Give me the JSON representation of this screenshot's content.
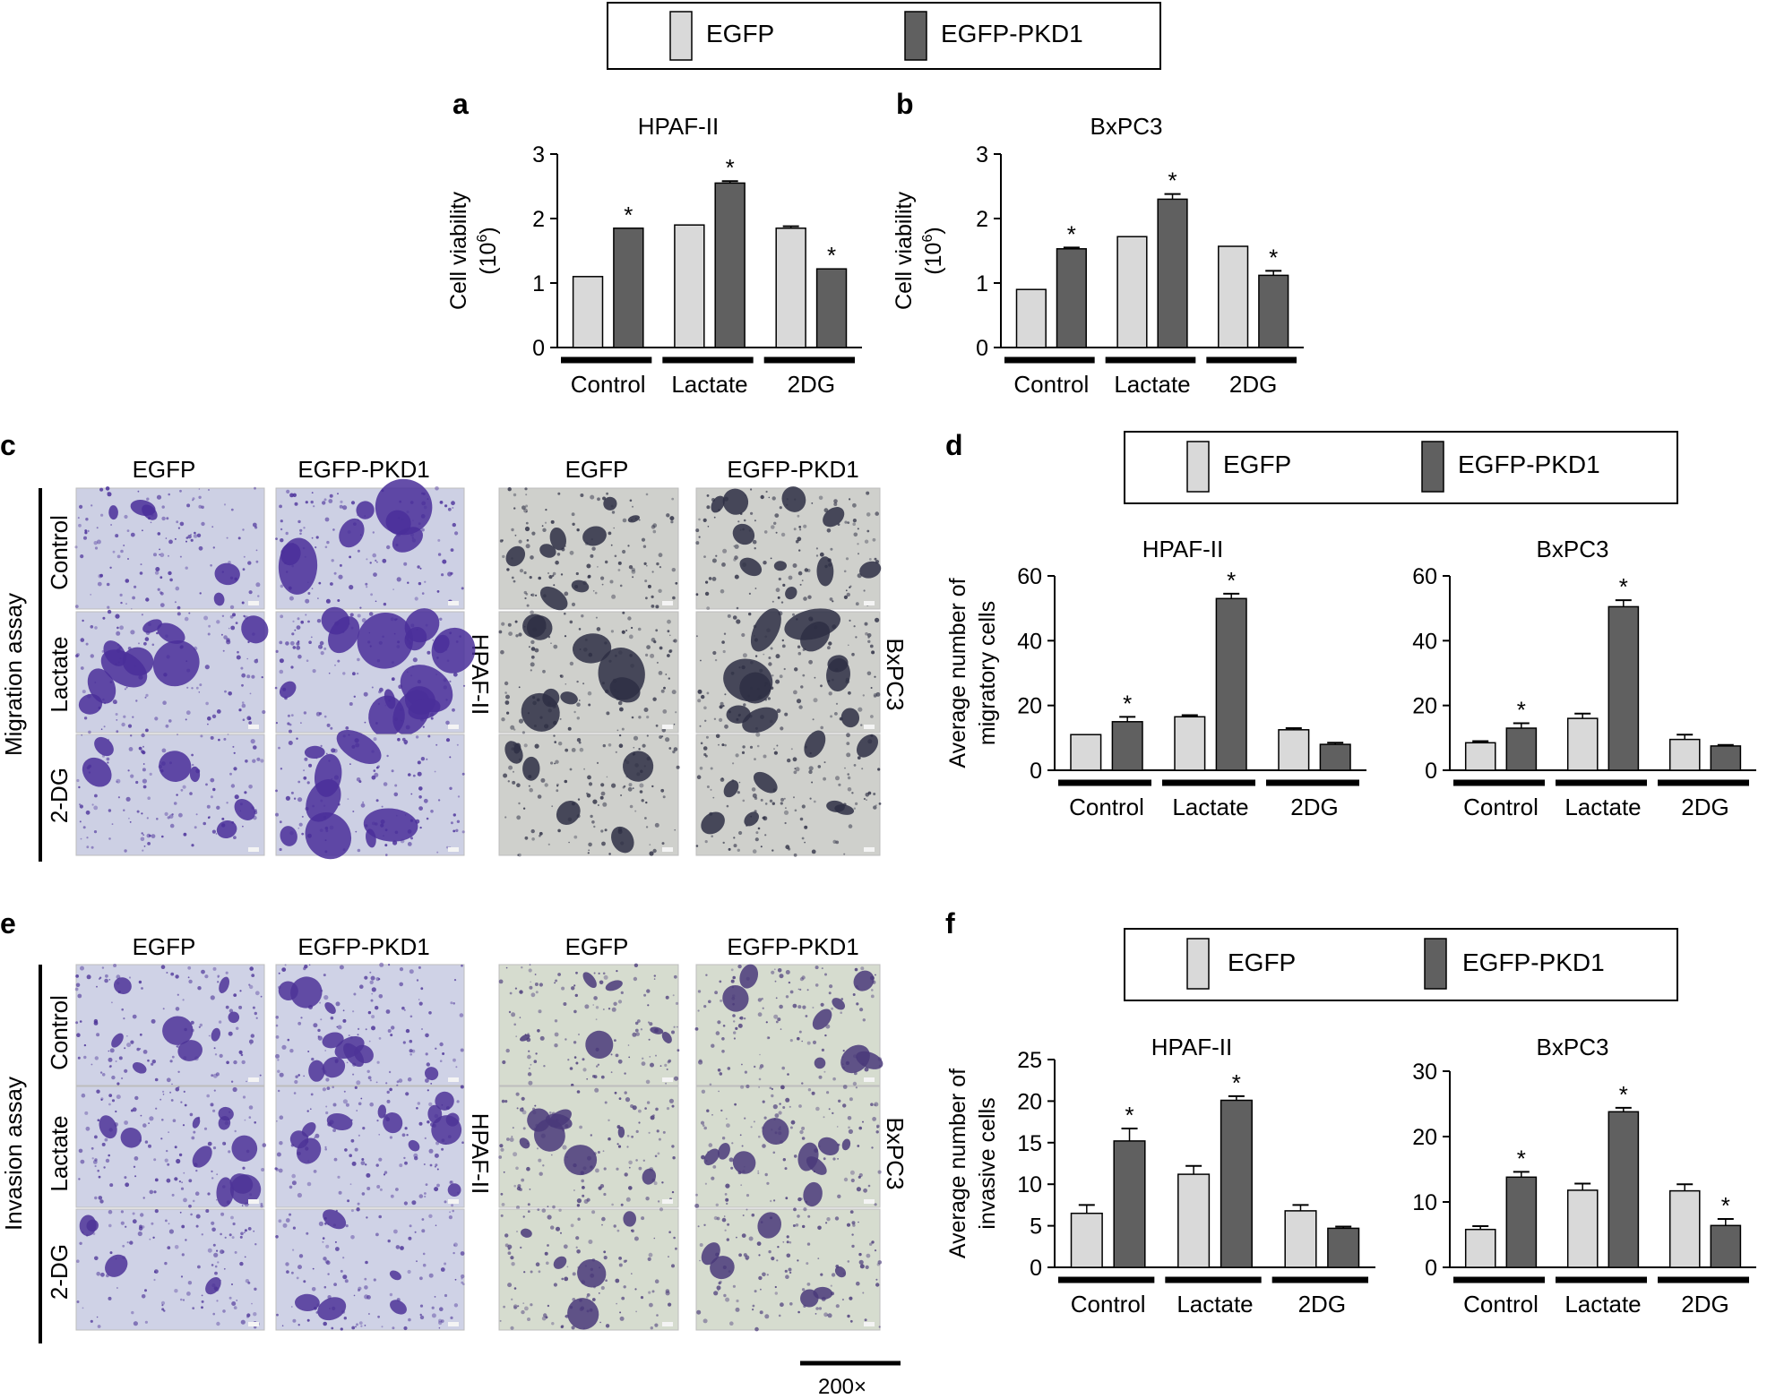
{
  "legend": {
    "egfp": "EGFP",
    "pkd1": "EGFP-PKD1"
  },
  "colors": {
    "egfp": "#d9d9d9",
    "pkd1": "#606060",
    "stroke": "#000000"
  },
  "panels": {
    "a": "a",
    "b": "b",
    "c": "c",
    "d": "d",
    "e": "e",
    "f": "f"
  },
  "images": {
    "columns": [
      "EGFP",
      "EGFP-PKD1",
      "EGFP",
      "EGFP-PKD1"
    ],
    "rows": [
      "Control",
      "Lactate",
      "2-DG"
    ],
    "migration_label": "Migration assay",
    "invasion_label": "Invasion assay",
    "cell_line_left": "HPAF-II",
    "cell_line_right": "BxPC3",
    "magnification": "200×",
    "migration_colors": {
      "hpaf_bg": "#cdd0e4",
      "hpaf_cell": "#4a2f9a",
      "bx_bg": "#cfd0cc",
      "bx_cell": "#2e2f44"
    },
    "invasion_colors": {
      "hpaf_bg": "#cfd2e6",
      "hpaf_cell": "#4d3498",
      "bx_bg": "#d6dccf",
      "bx_cell": "#4a3a7a"
    }
  },
  "chart_data": [
    {
      "id": "a",
      "type": "bar",
      "title": "HPAF-II",
      "ylabel": "Cell viability",
      "ylabel2": "(10",
      "ylabel_sup": "6",
      "ylabel_end": ")",
      "categories": [
        "Control",
        "Lactate",
        "2DG"
      ],
      "series": [
        {
          "name": "EGFP",
          "values": [
            1.1,
            1.9,
            1.85
          ],
          "errors": [
            0,
            0,
            0.03
          ]
        },
        {
          "name": "EGFP-PKD1",
          "values": [
            1.85,
            2.55,
            1.22
          ],
          "errors": [
            0,
            0.03,
            0
          ]
        }
      ],
      "significant": [
        [
          false,
          false,
          false
        ],
        [
          true,
          true,
          true
        ]
      ],
      "sig_mark": "*",
      "ylim": [
        0,
        3
      ],
      "yticks": [
        "0",
        "1",
        "2",
        "3"
      ]
    },
    {
      "id": "b",
      "type": "bar",
      "title": "BxPC3",
      "ylabel": "Cell viability",
      "ylabel2": "(10",
      "ylabel_sup": "6",
      "ylabel_end": ")",
      "categories": [
        "Control",
        "Lactate",
        "2DG"
      ],
      "series": [
        {
          "name": "EGFP",
          "values": [
            0.9,
            1.72,
            1.57
          ],
          "errors": [
            0,
            0,
            0
          ]
        },
        {
          "name": "EGFP-PKD1",
          "values": [
            1.53,
            2.3,
            1.12
          ],
          "errors": [
            0.02,
            0.08,
            0.07
          ]
        }
      ],
      "significant": [
        [
          false,
          false,
          false
        ],
        [
          true,
          true,
          true
        ]
      ],
      "sig_mark": "*",
      "ylim": [
        0,
        3
      ],
      "yticks": [
        "0",
        "1",
        "2",
        "3"
      ]
    },
    {
      "id": "d1",
      "type": "bar",
      "title": "HPAF-II",
      "ylabel": "Average number of",
      "ylabel2": "migratory cells",
      "categories": [
        "Control",
        "Lactate",
        "2DG"
      ],
      "series": [
        {
          "name": "EGFP",
          "values": [
            11,
            16.5,
            12.5
          ],
          "errors": [
            0,
            0.5,
            0.5
          ]
        },
        {
          "name": "EGFP-PKD1",
          "values": [
            15,
            53,
            8
          ],
          "errors": [
            1.5,
            1.5,
            0.5
          ]
        }
      ],
      "significant": [
        [
          false,
          false,
          false
        ],
        [
          true,
          true,
          false
        ]
      ],
      "sig_mark": "*",
      "ylim": [
        0,
        60
      ],
      "yticks": [
        "0",
        "20",
        "40",
        "60"
      ]
    },
    {
      "id": "d2",
      "type": "bar",
      "title": "BxPC3",
      "categories": [
        "Control",
        "Lactate",
        "2DG"
      ],
      "series": [
        {
          "name": "EGFP",
          "values": [
            8.5,
            16,
            9.5
          ],
          "errors": [
            0.5,
            1.5,
            1.5
          ]
        },
        {
          "name": "EGFP-PKD1",
          "values": [
            13,
            50.5,
            7.5
          ],
          "errors": [
            1.5,
            2,
            0.3
          ]
        }
      ],
      "significant": [
        [
          false,
          false,
          false
        ],
        [
          true,
          true,
          false
        ]
      ],
      "sig_mark": "*",
      "ylim": [
        0,
        60
      ],
      "yticks": [
        "0",
        "20",
        "40",
        "60"
      ]
    },
    {
      "id": "f1",
      "type": "bar",
      "title": "HPAF-II",
      "ylabel": "Average number of",
      "ylabel2": "invasive cells",
      "categories": [
        "Control",
        "Lactate",
        "2DG"
      ],
      "series": [
        {
          "name": "EGFP",
          "values": [
            6.5,
            11.2,
            6.8
          ],
          "errors": [
            1.0,
            1.0,
            0.7
          ]
        },
        {
          "name": "EGFP-PKD1",
          "values": [
            15.2,
            20.1,
            4.7
          ],
          "errors": [
            1.5,
            0.5,
            0.2
          ]
        }
      ],
      "significant": [
        [
          false,
          false,
          false
        ],
        [
          true,
          true,
          false
        ]
      ],
      "sig_mark": "*",
      "ylim": [
        0,
        25
      ],
      "yticks": [
        "0",
        "5",
        "10",
        "15",
        "20",
        "25"
      ]
    },
    {
      "id": "f2",
      "type": "bar",
      "title": "BxPC3",
      "categories": [
        "Control",
        "Lactate",
        "2DG"
      ],
      "series": [
        {
          "name": "EGFP",
          "values": [
            5.8,
            11.8,
            11.7
          ],
          "errors": [
            0.5,
            1.0,
            1.0
          ]
        },
        {
          "name": "EGFP-PKD1",
          "values": [
            13.8,
            23.8,
            6.4
          ],
          "errors": [
            0.8,
            0.6,
            1.0
          ]
        }
      ],
      "significant": [
        [
          false,
          false,
          false
        ],
        [
          true,
          true,
          true
        ]
      ],
      "sig_mark": "*",
      "ylim": [
        0,
        30
      ],
      "yticks": [
        "0",
        "10",
        "20",
        "30"
      ]
    }
  ]
}
